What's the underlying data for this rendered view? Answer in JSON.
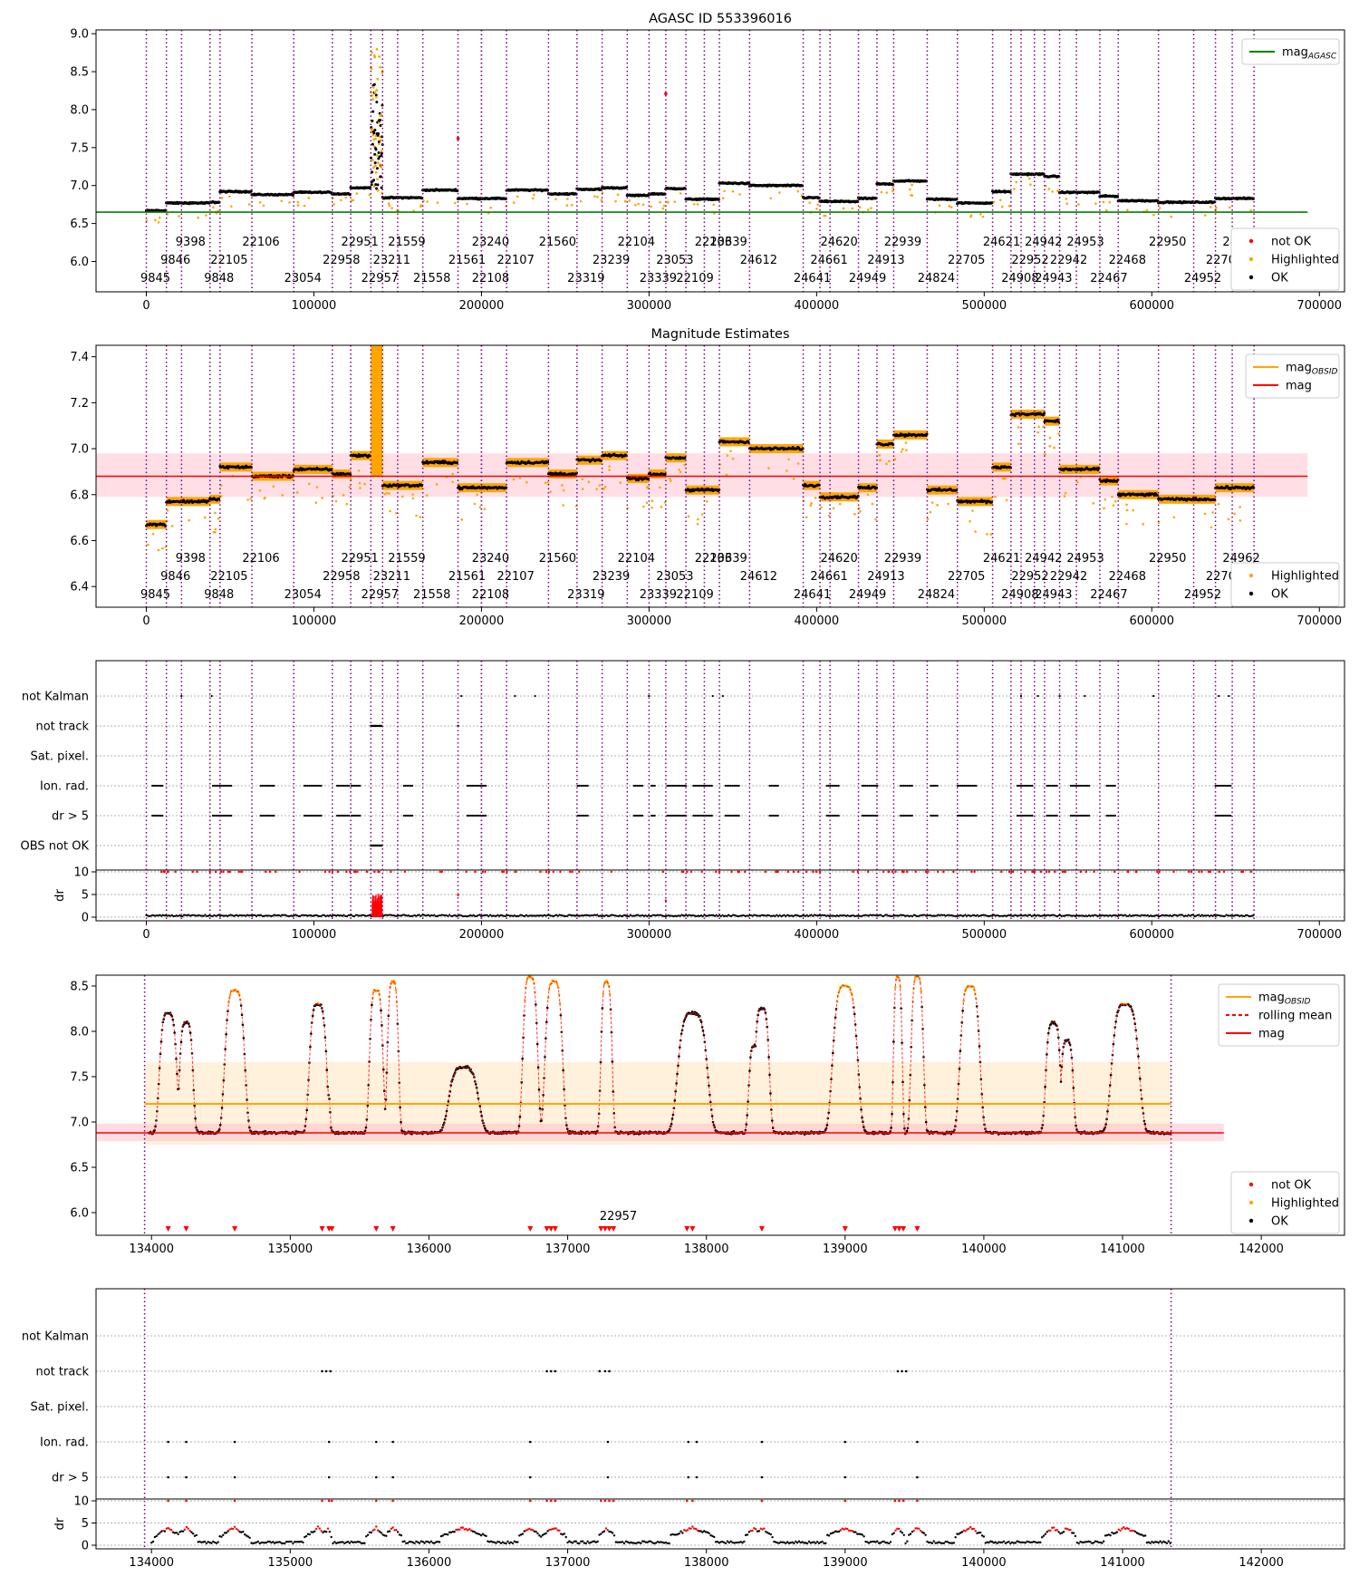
{
  "figure": {
    "title": "AGASC ID 553396016"
  },
  "obsid_markers": [
    {
      "id": "9845",
      "t": 0,
      "row": 2
    },
    {
      "id": "9846",
      "t": 12000,
      "row": 1
    },
    {
      "id": "9398",
      "t": 21000,
      "row": 0
    },
    {
      "id": "9848",
      "t": 38000,
      "row": 2
    },
    {
      "id": "22105",
      "t": 44000,
      "row": 1
    },
    {
      "id": "22106",
      "t": 63000,
      "row": 0
    },
    {
      "id": "23054",
      "t": 88000,
      "row": 2
    },
    {
      "id": "22958",
      "t": 111000,
      "row": 1
    },
    {
      "id": "22951",
      "t": 122000,
      "row": 0
    },
    {
      "id": "22957",
      "t": 134000,
      "row": 2
    },
    {
      "id": "23211",
      "t": 141000,
      "row": 1
    },
    {
      "id": "21559",
      "t": 150000,
      "row": 0
    },
    {
      "id": "21558",
      "t": 165000,
      "row": 2
    },
    {
      "id": "21561",
      "t": 186000,
      "row": 1
    },
    {
      "id": "22108",
      "t": 200000,
      "row": 2
    },
    {
      "id": "23240",
      "t": 200000,
      "row": 0
    },
    {
      "id": "22107",
      "t": 215000,
      "row": 1
    },
    {
      "id": "21560",
      "t": 240000,
      "row": 0
    },
    {
      "id": "23319",
      "t": 257000,
      "row": 2
    },
    {
      "id": "23239",
      "t": 272000,
      "row": 1
    },
    {
      "id": "22104",
      "t": 287000,
      "row": 0
    },
    {
      "id": "23339",
      "t": 300000,
      "row": 2
    },
    {
      "id": "23053",
      "t": 310000,
      "row": 1
    },
    {
      "id": "22109",
      "t": 322000,
      "row": 2
    },
    {
      "id": "22103",
      "t": 333000,
      "row": 0
    },
    {
      "id": "23639",
      "t": 342000,
      "row": 0
    },
    {
      "id": "24612",
      "t": 360000,
      "row": 1
    },
    {
      "id": "24641",
      "t": 392000,
      "row": 2
    },
    {
      "id": "24661",
      "t": 402000,
      "row": 1
    },
    {
      "id": "24620",
      "t": 408000,
      "row": 0
    },
    {
      "id": "24949",
      "t": 425000,
      "row": 2
    },
    {
      "id": "24913",
      "t": 436000,
      "row": 1
    },
    {
      "id": "22939",
      "t": 446000,
      "row": 0
    },
    {
      "id": "24824",
      "t": 466000,
      "row": 2
    },
    {
      "id": "22705",
      "t": 484000,
      "row": 1
    },
    {
      "id": "24621",
      "t": 505000,
      "row": 0
    },
    {
      "id": "24908",
      "t": 516000,
      "row": 2
    },
    {
      "id": "22952",
      "t": 522000,
      "row": 1
    },
    {
      "id": "24942",
      "t": 530000,
      "row": 0
    },
    {
      "id": "24943",
      "t": 536000,
      "row": 2
    },
    {
      "id": "22942",
      "t": 545000,
      "row": 1
    },
    {
      "id": "24953",
      "t": 555000,
      "row": 0
    },
    {
      "id": "22467",
      "t": 569000,
      "row": 2
    },
    {
      "id": "22468",
      "t": 580000,
      "row": 1
    },
    {
      "id": "22950",
      "t": 604000,
      "row": 0
    },
    {
      "id": "24952",
      "t": 625000,
      "row": 2
    },
    {
      "id": "22706",
      "t": 638000,
      "row": 1
    },
    {
      "id": "24962",
      "t": 648000,
      "row": 0
    }
  ],
  "obsid_end": 661000,
  "chart_data": [
    {
      "type": "scatter",
      "title": "AGASC ID 553396016",
      "xlim": [
        -30000,
        715000
      ],
      "ylim": [
        5.6,
        9.05
      ],
      "x_ticks": [
        0,
        100000,
        200000,
        300000,
        400000,
        500000,
        600000,
        700000
      ],
      "y_ticks": [
        6.0,
        6.5,
        7.0,
        7.5,
        8.0,
        8.5,
        9.0
      ],
      "legend": {
        "position": "top-right",
        "entries": [
          {
            "label": "mag",
            "sub": "AGASC",
            "kind": "line",
            "color": "#008000"
          }
        ]
      },
      "legend2": {
        "position": "bottom-right",
        "entries": [
          {
            "label": "not OK",
            "color": "#ff0000"
          },
          {
            "label": "Highlighted",
            "color": "#ffa500"
          },
          {
            "label": "OK",
            "color": "#000000"
          }
        ]
      },
      "mag_agasc": 6.65,
      "segments": [
        {
          "t0": 0,
          "t1": 12000,
          "mag": 6.67
        },
        {
          "t0": 12000,
          "t1": 38000,
          "mag": 6.77
        },
        {
          "t0": 38000,
          "t1": 44000,
          "mag": 6.78
        },
        {
          "t0": 44000,
          "t1": 63000,
          "mag": 6.92
        },
        {
          "t0": 63000,
          "t1": 88000,
          "mag": 6.88
        },
        {
          "t0": 88000,
          "t1": 111000,
          "mag": 6.91
        },
        {
          "t0": 111000,
          "t1": 122000,
          "mag": 6.89
        },
        {
          "t0": 122000,
          "t1": 134000,
          "mag": 6.97
        },
        {
          "t0": 141000,
          "t1": 150000,
          "mag": 6.84
        },
        {
          "t0": 150000,
          "t1": 165000,
          "mag": 6.84
        },
        {
          "t0": 165000,
          "t1": 186000,
          "mag": 6.94
        },
        {
          "t0": 186000,
          "t1": 215000,
          "mag": 6.83
        },
        {
          "t0": 215000,
          "t1": 240000,
          "mag": 6.94
        },
        {
          "t0": 240000,
          "t1": 257000,
          "mag": 6.89
        },
        {
          "t0": 257000,
          "t1": 272000,
          "mag": 6.95
        },
        {
          "t0": 272000,
          "t1": 287000,
          "mag": 6.97
        },
        {
          "t0": 287000,
          "t1": 300000,
          "mag": 6.87
        },
        {
          "t0": 300000,
          "t1": 310000,
          "mag": 6.89
        },
        {
          "t0": 310000,
          "t1": 322000,
          "mag": 6.96
        },
        {
          "t0": 322000,
          "t1": 342000,
          "mag": 6.82
        },
        {
          "t0": 342000,
          "t1": 360000,
          "mag": 7.03
        },
        {
          "t0": 360000,
          "t1": 392000,
          "mag": 7.0
        },
        {
          "t0": 392000,
          "t1": 402000,
          "mag": 6.84
        },
        {
          "t0": 402000,
          "t1": 425000,
          "mag": 6.79
        },
        {
          "t0": 425000,
          "t1": 436000,
          "mag": 6.83
        },
        {
          "t0": 436000,
          "t1": 446000,
          "mag": 7.02
        },
        {
          "t0": 446000,
          "t1": 466000,
          "mag": 7.06
        },
        {
          "t0": 466000,
          "t1": 484000,
          "mag": 6.82
        },
        {
          "t0": 484000,
          "t1": 505000,
          "mag": 6.77
        },
        {
          "t0": 505000,
          "t1": 516000,
          "mag": 6.92
        },
        {
          "t0": 516000,
          "t1": 536000,
          "mag": 7.15
        },
        {
          "t0": 536000,
          "t1": 545000,
          "mag": 7.12
        },
        {
          "t0": 545000,
          "t1": 569000,
          "mag": 6.91
        },
        {
          "t0": 569000,
          "t1": 580000,
          "mag": 6.86
        },
        {
          "t0": 580000,
          "t1": 604000,
          "mag": 6.8
        },
        {
          "t0": 604000,
          "t1": 638000,
          "mag": 6.78
        },
        {
          "t0": 638000,
          "t1": 661000,
          "mag": 6.83
        }
      ],
      "spike": {
        "t0": 134000,
        "t1": 141000,
        "ok_max": 8.35,
        "hl_max": 8.8
      },
      "outliers_notok": [
        {
          "x": 186000,
          "y": 7.62
        },
        {
          "x": 310000,
          "y": 8.21
        }
      ]
    },
    {
      "type": "scatter",
      "title": "Magnitude Estimates",
      "xlim": [
        -30000,
        715000
      ],
      "ylim": [
        6.31,
        7.45
      ],
      "x_ticks": [
        0,
        100000,
        200000,
        300000,
        400000,
        500000,
        600000,
        700000
      ],
      "y_ticks": [
        6.4,
        6.6,
        6.8,
        7.0,
        7.2,
        7.4
      ],
      "legend": {
        "position": "top-right",
        "entries": [
          {
            "label": "mag",
            "sub": "OBSID",
            "kind": "line",
            "color": "#ffa500"
          },
          {
            "label": "mag",
            "kind": "line",
            "color": "#ff0000"
          }
        ]
      },
      "legend2": {
        "position": "bottom-right",
        "entries": [
          {
            "label": "Highlighted",
            "color": "#ffa500"
          },
          {
            "label": "OK",
            "color": "#000000"
          }
        ]
      },
      "mag": 6.88,
      "mag_band": [
        6.79,
        6.98
      ]
    },
    {
      "type": "scatter",
      "title": "",
      "xlim": [
        -30000,
        715000
      ],
      "x_ticks": [
        0,
        100000,
        200000,
        300000,
        400000,
        500000,
        600000,
        700000
      ],
      "flag_labels": [
        "not Kalman",
        "not track",
        "Sat. pixel.",
        "Ion. rad.",
        "dr > 5",
        "OBS not OK"
      ],
      "dr_label": "dr",
      "dr_ticks": [
        0,
        5,
        10
      ],
      "ylim_dr": [
        0,
        10
      ]
    },
    {
      "type": "scatter",
      "title": "",
      "xlim": [
        133600,
        142600
      ],
      "ylim": [
        5.75,
        8.62
      ],
      "x_ticks": [
        134000,
        135000,
        136000,
        137000,
        138000,
        139000,
        140000,
        141000,
        142000
      ],
      "y_ticks": [
        6.0,
        6.5,
        7.0,
        7.5,
        8.0,
        8.5
      ],
      "annotation": "22957",
      "annotation_t": 137300,
      "legend": {
        "position": "top-right",
        "entries": [
          {
            "label": "mag",
            "sub": "OBSID",
            "kind": "line",
            "color": "#ffa500"
          },
          {
            "label": "rolling mean",
            "kind": "dashed",
            "color": "#ff0000"
          },
          {
            "label": "mag",
            "kind": "line",
            "color": "#ff0000"
          }
        ]
      },
      "legend2": {
        "position": "bottom-right",
        "entries": [
          {
            "label": "not OK",
            "color": "#ff0000"
          },
          {
            "label": "Highlighted",
            "color": "#ffa500"
          },
          {
            "label": "OK",
            "color": "#000000"
          }
        ]
      },
      "obs_start": 133950,
      "obs_end": 141350,
      "mag_obsid": 7.2,
      "mag_obsid_band": [
        6.75,
        7.66
      ],
      "mag": 6.88,
      "mag_band": [
        6.79,
        6.98
      ],
      "bumps": [
        {
          "t": 134120,
          "w": 70,
          "h": 8.2
        },
        {
          "t": 134250,
          "w": 55,
          "h": 8.1
        },
        {
          "t": 134600,
          "w": 80,
          "h": 8.45
        },
        {
          "t": 135200,
          "w": 70,
          "h": 8.3
        },
        {
          "t": 135270,
          "w": 20,
          "h": 7.3
        },
        {
          "t": 135620,
          "w": 55,
          "h": 8.45
        },
        {
          "t": 135740,
          "w": 45,
          "h": 8.55
        },
        {
          "t": 136250,
          "w": 120,
          "h": 7.6
        },
        {
          "t": 136730,
          "w": 60,
          "h": 8.6
        },
        {
          "t": 136900,
          "w": 70,
          "h": 8.55
        },
        {
          "t": 137280,
          "w": 45,
          "h": 8.55
        },
        {
          "t": 137900,
          "w": 120,
          "h": 8.2
        },
        {
          "t": 138350,
          "w": 50,
          "h": 7.85
        },
        {
          "t": 138400,
          "w": 60,
          "h": 8.25
        },
        {
          "t": 139000,
          "w": 100,
          "h": 8.5
        },
        {
          "t": 139380,
          "w": 35,
          "h": 8.6
        },
        {
          "t": 139520,
          "w": 50,
          "h": 8.6
        },
        {
          "t": 139900,
          "w": 80,
          "h": 8.5
        },
        {
          "t": 140500,
          "w": 60,
          "h": 8.1
        },
        {
          "t": 140600,
          "w": 50,
          "h": 7.9
        },
        {
          "t": 141020,
          "w": 110,
          "h": 8.3
        }
      ],
      "notok_t": [
        134120,
        134250,
        134600,
        135230,
        135280,
        135300,
        135620,
        135740,
        136730,
        136850,
        136880,
        136910,
        137240,
        137270,
        137300,
        137330,
        137860,
        137900,
        138400,
        139000,
        139360,
        139390,
        139420,
        139520
      ]
    },
    {
      "type": "scatter",
      "title": "",
      "xlim": [
        133600,
        142600
      ],
      "x_ticks": [
        134000,
        135000,
        136000,
        137000,
        138000,
        139000,
        140000,
        141000,
        142000
      ],
      "flag_labels": [
        "not Kalman",
        "not track",
        "Sat. pixel.",
        "Ion. rad.",
        "dr > 5"
      ],
      "dr_label": "dr",
      "dr_ticks": [
        0,
        5,
        10
      ],
      "ylim_dr": [
        0,
        10
      ]
    }
  ]
}
